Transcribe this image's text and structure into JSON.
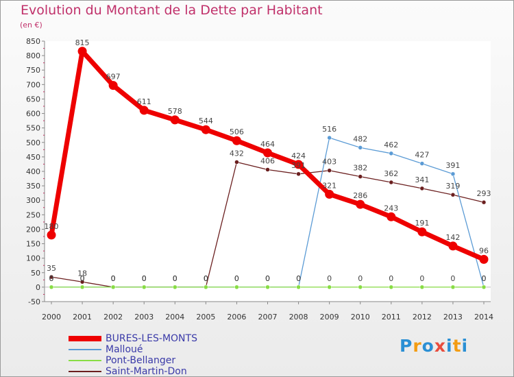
{
  "chart_data": {
    "type": "line",
    "title": "Evolution du Montant de la Dette par Habitant",
    "subtitle": "(en €)",
    "x": [
      2000,
      2001,
      2002,
      2003,
      2004,
      2005,
      2006,
      2007,
      2008,
      2009,
      2010,
      2011,
      2012,
      2013,
      2014
    ],
    "ylim": [
      -50,
      850
    ],
    "yticks": [
      -50,
      0,
      50,
      100,
      150,
      200,
      250,
      300,
      350,
      400,
      450,
      500,
      550,
      600,
      650,
      700,
      750,
      800,
      850
    ],
    "grid": false,
    "legend_position": "bottom-left",
    "series": [
      {
        "name": "BURES-LES-MONTS",
        "color": "#ee0000",
        "values": [
          180,
          815,
          697,
          611,
          578,
          544,
          506,
          464,
          424,
          321,
          286,
          243,
          191,
          142,
          96
        ]
      },
      {
        "name": "Malloué",
        "color": "#5b9bd5",
        "values": [
          0,
          0,
          0,
          0,
          0,
          0,
          0,
          0,
          0,
          516,
          482,
          462,
          427,
          391,
          0
        ]
      },
      {
        "name": "Pont-Bellanger",
        "color": "#88dd44",
        "values": [
          0,
          0,
          0,
          0,
          0,
          0,
          0,
          0,
          0,
          0,
          0,
          0,
          0,
          0,
          0
        ]
      },
      {
        "name": "Saint-Martin-Don",
        "color": "#6b1f1f",
        "values": [
          35,
          18,
          0,
          0,
          0,
          0,
          432,
          406,
          391,
          403,
          382,
          362,
          341,
          319,
          293
        ]
      }
    ]
  },
  "logo": {
    "letters": [
      "P",
      "r",
      "o",
      "x",
      "i",
      "t",
      "i"
    ],
    "colors": [
      "#2a8fd4",
      "#f39c12",
      "#2a8fd4",
      "#e84c3d",
      "#2a8fd4",
      "#f39c12",
      "#2a8fd4"
    ]
  }
}
